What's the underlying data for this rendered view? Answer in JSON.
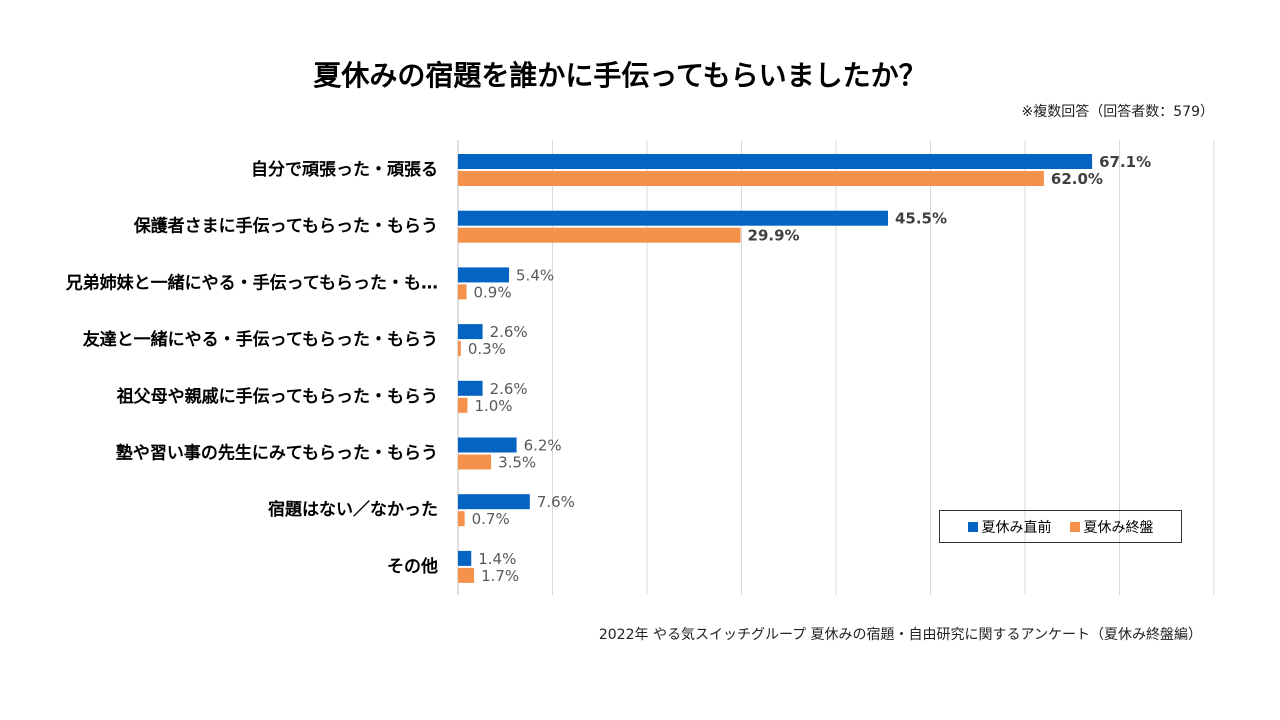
{
  "title": "夏休みの宿題を誰かに手伝ってもらいましたか？",
  "note": "※複数回答（回答者数：579）",
  "footer": "2022年 やる気スイッチグループ 夏休みの宿題・自由研究に関するアンケート（夏休み終盤編）",
  "chart_data": {
    "type": "bar",
    "orientation": "horizontal",
    "xlim": [
      0,
      80
    ],
    "grid": true,
    "legend_position": "bottom-right",
    "categories": [
      "自分で頑張った・頑張る",
      "保護者さまに手伝ってもらった・もらう",
      "兄弟姉妹と一緒にやる・手伝ってもらった・も…",
      "友達と一緒にやる・手伝ってもらった・もらう",
      "祖父母や親戚に手伝ってもらった・もらう",
      "塾や習い事の先生にみてもらった・もらう",
      "宿題はない／なかった",
      "その他"
    ],
    "series": [
      {
        "name": "夏休み直前",
        "color": "#0563C1",
        "values": [
          67.1,
          45.5,
          5.4,
          2.6,
          2.6,
          6.2,
          7.6,
          1.4
        ]
      },
      {
        "name": "夏休み終盤",
        "color": "#F4914A",
        "values": [
          62.0,
          29.9,
          0.9,
          0.3,
          1.0,
          3.5,
          0.7,
          1.7
        ]
      }
    ],
    "value_format": "%"
  }
}
